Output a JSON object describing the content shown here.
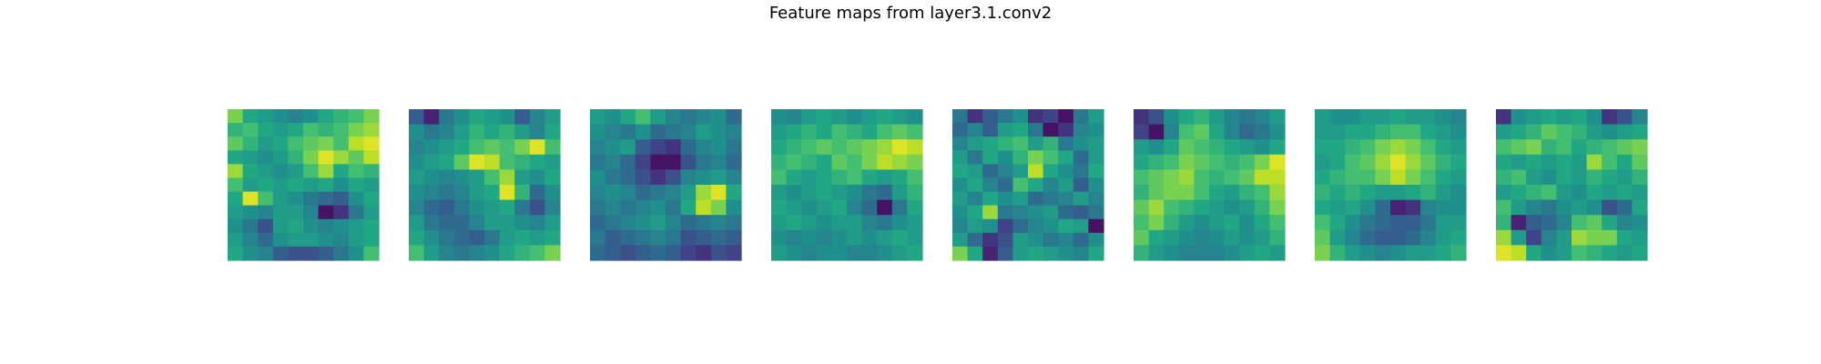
{
  "title": "Feature maps from layer3.1.conv2",
  "chart_data": {
    "type": "heatmap",
    "title": "Feature maps from layer3.1.conv2",
    "colormap": "viridis",
    "grid": false,
    "axes_visible": false,
    "maps": [
      {
        "values": [
          [
            0.8,
            0.6,
            0.55,
            0.5,
            0.45,
            0.5,
            0.6,
            0.65,
            0.7,
            0.8
          ],
          [
            0.65,
            0.7,
            0.6,
            0.55,
            0.6,
            0.7,
            0.65,
            0.7,
            0.8,
            0.85
          ],
          [
            0.75,
            0.65,
            0.55,
            0.6,
            0.7,
            0.75,
            0.8,
            0.7,
            0.9,
            0.95
          ],
          [
            0.6,
            0.55,
            0.5,
            0.55,
            0.65,
            0.8,
            0.95,
            0.85,
            0.75,
            0.9
          ],
          [
            0.85,
            0.6,
            0.55,
            0.5,
            0.55,
            0.7,
            0.85,
            0.6,
            0.7,
            0.65
          ],
          [
            0.7,
            0.55,
            0.6,
            0.55,
            0.6,
            0.55,
            0.6,
            0.5,
            0.6,
            0.55
          ],
          [
            0.6,
            0.95,
            0.7,
            0.55,
            0.5,
            0.4,
            0.35,
            0.3,
            0.5,
            0.6
          ],
          [
            0.55,
            0.5,
            0.45,
            0.55,
            0.55,
            0.45,
            0.05,
            0.15,
            0.4,
            0.55
          ],
          [
            0.5,
            0.4,
            0.25,
            0.55,
            0.6,
            0.5,
            0.45,
            0.5,
            0.55,
            0.6
          ],
          [
            0.55,
            0.45,
            0.35,
            0.5,
            0.55,
            0.55,
            0.5,
            0.45,
            0.55,
            0.6
          ],
          [
            0.6,
            0.5,
            0.45,
            0.3,
            0.25,
            0.25,
            0.3,
            0.4,
            0.5,
            0.7
          ]
        ]
      },
      {
        "values": [
          [
            0.3,
            0.1,
            0.4,
            0.5,
            0.6,
            0.55,
            0.5,
            0.3,
            0.45,
            0.55
          ],
          [
            0.5,
            0.4,
            0.45,
            0.55,
            0.65,
            0.6,
            0.65,
            0.55,
            0.45,
            0.6
          ],
          [
            0.45,
            0.5,
            0.55,
            0.6,
            0.7,
            0.75,
            0.7,
            0.8,
            0.95,
            0.7
          ],
          [
            0.5,
            0.55,
            0.6,
            0.75,
            0.95,
            0.9,
            0.7,
            0.65,
            0.6,
            0.55
          ],
          [
            0.55,
            0.5,
            0.45,
            0.5,
            0.55,
            0.7,
            0.85,
            0.55,
            0.5,
            0.6
          ],
          [
            0.5,
            0.45,
            0.4,
            0.45,
            0.55,
            0.6,
            0.95,
            0.65,
            0.35,
            0.5
          ],
          [
            0.45,
            0.35,
            0.3,
            0.4,
            0.5,
            0.55,
            0.6,
            0.4,
            0.25,
            0.45
          ],
          [
            0.55,
            0.4,
            0.35,
            0.35,
            0.45,
            0.55,
            0.55,
            0.5,
            0.45,
            0.55
          ],
          [
            0.6,
            0.5,
            0.4,
            0.35,
            0.3,
            0.4,
            0.55,
            0.6,
            0.55,
            0.6
          ],
          [
            0.7,
            0.55,
            0.45,
            0.4,
            0.45,
            0.5,
            0.6,
            0.65,
            0.7,
            0.8
          ]
        ]
      },
      {
        "values": [
          [
            0.55,
            0.5,
            0.6,
            0.7,
            0.55,
            0.45,
            0.4,
            0.45,
            0.5,
            0.35
          ],
          [
            0.5,
            0.45,
            0.4,
            0.5,
            0.35,
            0.4,
            0.45,
            0.55,
            0.5,
            0.45
          ],
          [
            0.45,
            0.5,
            0.55,
            0.3,
            0.2,
            0.15,
            0.35,
            0.45,
            0.5,
            0.4
          ],
          [
            0.4,
            0.45,
            0.35,
            0.2,
            0.05,
            0.05,
            0.25,
            0.4,
            0.45,
            0.35
          ],
          [
            0.5,
            0.4,
            0.35,
            0.25,
            0.15,
            0.25,
            0.45,
            0.5,
            0.55,
            0.45
          ],
          [
            0.45,
            0.5,
            0.45,
            0.35,
            0.4,
            0.45,
            0.55,
            0.85,
            0.95,
            0.6
          ],
          [
            0.4,
            0.45,
            0.4,
            0.45,
            0.5,
            0.4,
            0.6,
            0.9,
            0.8,
            0.5
          ],
          [
            0.35,
            0.4,
            0.45,
            0.5,
            0.55,
            0.45,
            0.35,
            0.4,
            0.45,
            0.4
          ],
          [
            0.4,
            0.3,
            0.35,
            0.4,
            0.45,
            0.4,
            0.25,
            0.3,
            0.35,
            0.3
          ],
          [
            0.35,
            0.3,
            0.25,
            0.3,
            0.35,
            0.3,
            0.2,
            0.15,
            0.25,
            0.2
          ]
        ]
      },
      {
        "values": [
          [
            0.5,
            0.45,
            0.55,
            0.6,
            0.55,
            0.5,
            0.55,
            0.6,
            0.55,
            0.5
          ],
          [
            0.55,
            0.6,
            0.65,
            0.6,
            0.7,
            0.65,
            0.6,
            0.7,
            0.75,
            0.7
          ],
          [
            0.6,
            0.65,
            0.7,
            0.75,
            0.7,
            0.75,
            0.8,
            0.85,
            0.95,
            0.9
          ],
          [
            0.65,
            0.7,
            0.65,
            0.6,
            0.75,
            0.7,
            0.8,
            0.9,
            0.85,
            0.8
          ],
          [
            0.7,
            0.6,
            0.55,
            0.6,
            0.65,
            0.7,
            0.6,
            0.55,
            0.6,
            0.7
          ],
          [
            0.55,
            0.5,
            0.55,
            0.6,
            0.55,
            0.5,
            0.4,
            0.35,
            0.55,
            0.65
          ],
          [
            0.6,
            0.55,
            0.5,
            0.55,
            0.6,
            0.45,
            0.35,
            0.05,
            0.4,
            0.6
          ],
          [
            0.55,
            0.6,
            0.55,
            0.5,
            0.55,
            0.55,
            0.45,
            0.4,
            0.5,
            0.55
          ],
          [
            0.5,
            0.45,
            0.5,
            0.45,
            0.5,
            0.55,
            0.5,
            0.55,
            0.6,
            0.55
          ],
          [
            0.55,
            0.5,
            0.45,
            0.5,
            0.5,
            0.45,
            0.45,
            0.5,
            0.55,
            0.6
          ]
        ]
      },
      {
        "values": [
          [
            0.4,
            0.15,
            0.3,
            0.4,
            0.5,
            0.15,
            0.2,
            0.05,
            0.4,
            0.55
          ],
          [
            0.35,
            0.45,
            0.3,
            0.55,
            0.6,
            0.4,
            0.05,
            0.15,
            0.45,
            0.5
          ],
          [
            0.45,
            0.55,
            0.6,
            0.65,
            0.7,
            0.55,
            0.65,
            0.4,
            0.5,
            0.55
          ],
          [
            0.55,
            0.4,
            0.6,
            0.5,
            0.65,
            0.8,
            0.7,
            0.6,
            0.35,
            0.55
          ],
          [
            0.6,
            0.55,
            0.35,
            0.45,
            0.55,
            0.9,
            0.6,
            0.5,
            0.4,
            0.6
          ],
          [
            0.5,
            0.6,
            0.45,
            0.35,
            0.7,
            0.6,
            0.45,
            0.55,
            0.3,
            0.5
          ],
          [
            0.55,
            0.45,
            0.6,
            0.5,
            0.55,
            0.35,
            0.4,
            0.45,
            0.55,
            0.45
          ],
          [
            0.5,
            0.6,
            0.85,
            0.4,
            0.45,
            0.5,
            0.55,
            0.35,
            0.3,
            0.4
          ],
          [
            0.45,
            0.55,
            0.5,
            0.2,
            0.35,
            0.45,
            0.5,
            0.6,
            0.55,
            0.05
          ],
          [
            0.55,
            0.35,
            0.15,
            0.25,
            0.55,
            0.5,
            0.4,
            0.45,
            0.35,
            0.5
          ],
          [
            0.8,
            0.6,
            0.1,
            0.3,
            0.55,
            0.6,
            0.55,
            0.5,
            0.45,
            0.6
          ]
        ]
      },
      {
        "values": [
          [
            0.15,
            0.25,
            0.5,
            0.6,
            0.65,
            0.55,
            0.45,
            0.4,
            0.45,
            0.55
          ],
          [
            0.2,
            0.05,
            0.45,
            0.7,
            0.75,
            0.6,
            0.45,
            0.35,
            0.4,
            0.5
          ],
          [
            0.55,
            0.5,
            0.6,
            0.75,
            0.7,
            0.65,
            0.6,
            0.55,
            0.5,
            0.6
          ],
          [
            0.6,
            0.65,
            0.7,
            0.8,
            0.75,
            0.7,
            0.65,
            0.7,
            0.8,
            0.95
          ],
          [
            0.7,
            0.75,
            0.8,
            0.85,
            0.7,
            0.65,
            0.7,
            0.75,
            0.9,
            0.9
          ],
          [
            0.65,
            0.75,
            0.8,
            0.8,
            0.7,
            0.6,
            0.55,
            0.65,
            0.7,
            0.85
          ],
          [
            0.75,
            0.85,
            0.7,
            0.65,
            0.6,
            0.55,
            0.5,
            0.55,
            0.65,
            0.8
          ],
          [
            0.7,
            0.8,
            0.65,
            0.55,
            0.5,
            0.55,
            0.6,
            0.5,
            0.6,
            0.7
          ],
          [
            0.75,
            0.6,
            0.55,
            0.5,
            0.45,
            0.5,
            0.55,
            0.5,
            0.55,
            0.65
          ],
          [
            0.65,
            0.55,
            0.5,
            0.45,
            0.45,
            0.45,
            0.5,
            0.55,
            0.6,
            0.55
          ]
        ]
      },
      {
        "values": [
          [
            0.55,
            0.5,
            0.5,
            0.55,
            0.55,
            0.6,
            0.55,
            0.55,
            0.5,
            0.45
          ],
          [
            0.55,
            0.55,
            0.6,
            0.6,
            0.65,
            0.7,
            0.7,
            0.6,
            0.55,
            0.5
          ],
          [
            0.6,
            0.6,
            0.65,
            0.7,
            0.8,
            0.85,
            0.8,
            0.7,
            0.6,
            0.55
          ],
          [
            0.55,
            0.6,
            0.7,
            0.75,
            0.85,
            0.95,
            0.85,
            0.75,
            0.65,
            0.6
          ],
          [
            0.6,
            0.65,
            0.7,
            0.7,
            0.8,
            0.9,
            0.8,
            0.7,
            0.6,
            0.55
          ],
          [
            0.65,
            0.6,
            0.65,
            0.6,
            0.55,
            0.55,
            0.6,
            0.65,
            0.55,
            0.5
          ],
          [
            0.6,
            0.55,
            0.6,
            0.5,
            0.35,
            0.1,
            0.15,
            0.45,
            0.5,
            0.5
          ],
          [
            0.7,
            0.6,
            0.5,
            0.4,
            0.35,
            0.3,
            0.3,
            0.4,
            0.55,
            0.55
          ],
          [
            0.75,
            0.55,
            0.45,
            0.35,
            0.3,
            0.3,
            0.35,
            0.45,
            0.55,
            0.6
          ],
          [
            0.8,
            0.65,
            0.55,
            0.5,
            0.45,
            0.5,
            0.55,
            0.55,
            0.6,
            0.65
          ]
        ]
      },
      {
        "values": [
          [
            0.15,
            0.5,
            0.55,
            0.6,
            0.55,
            0.6,
            0.5,
            0.15,
            0.25,
            0.45
          ],
          [
            0.55,
            0.6,
            0.65,
            0.75,
            0.7,
            0.65,
            0.55,
            0.5,
            0.55,
            0.6
          ],
          [
            0.7,
            0.75,
            0.8,
            0.65,
            0.7,
            0.6,
            0.65,
            0.7,
            0.75,
            0.8
          ],
          [
            0.6,
            0.55,
            0.6,
            0.55,
            0.6,
            0.55,
            0.85,
            0.7,
            0.6,
            0.75
          ],
          [
            0.65,
            0.7,
            0.55,
            0.5,
            0.6,
            0.55,
            0.65,
            0.6,
            0.55,
            0.65
          ],
          [
            0.55,
            0.6,
            0.65,
            0.7,
            0.55,
            0.5,
            0.6,
            0.55,
            0.6,
            0.55
          ],
          [
            0.7,
            0.55,
            0.45,
            0.4,
            0.5,
            0.55,
            0.5,
            0.25,
            0.35,
            0.6
          ],
          [
            0.65,
            0.1,
            0.3,
            0.35,
            0.45,
            0.7,
            0.75,
            0.6,
            0.45,
            0.5
          ],
          [
            0.85,
            0.55,
            0.2,
            0.45,
            0.55,
            0.85,
            0.8,
            0.8,
            0.6,
            0.55
          ],
          [
            0.95,
            0.9,
            0.6,
            0.5,
            0.55,
            0.7,
            0.65,
            0.6,
            0.55,
            0.6
          ]
        ]
      }
    ]
  }
}
